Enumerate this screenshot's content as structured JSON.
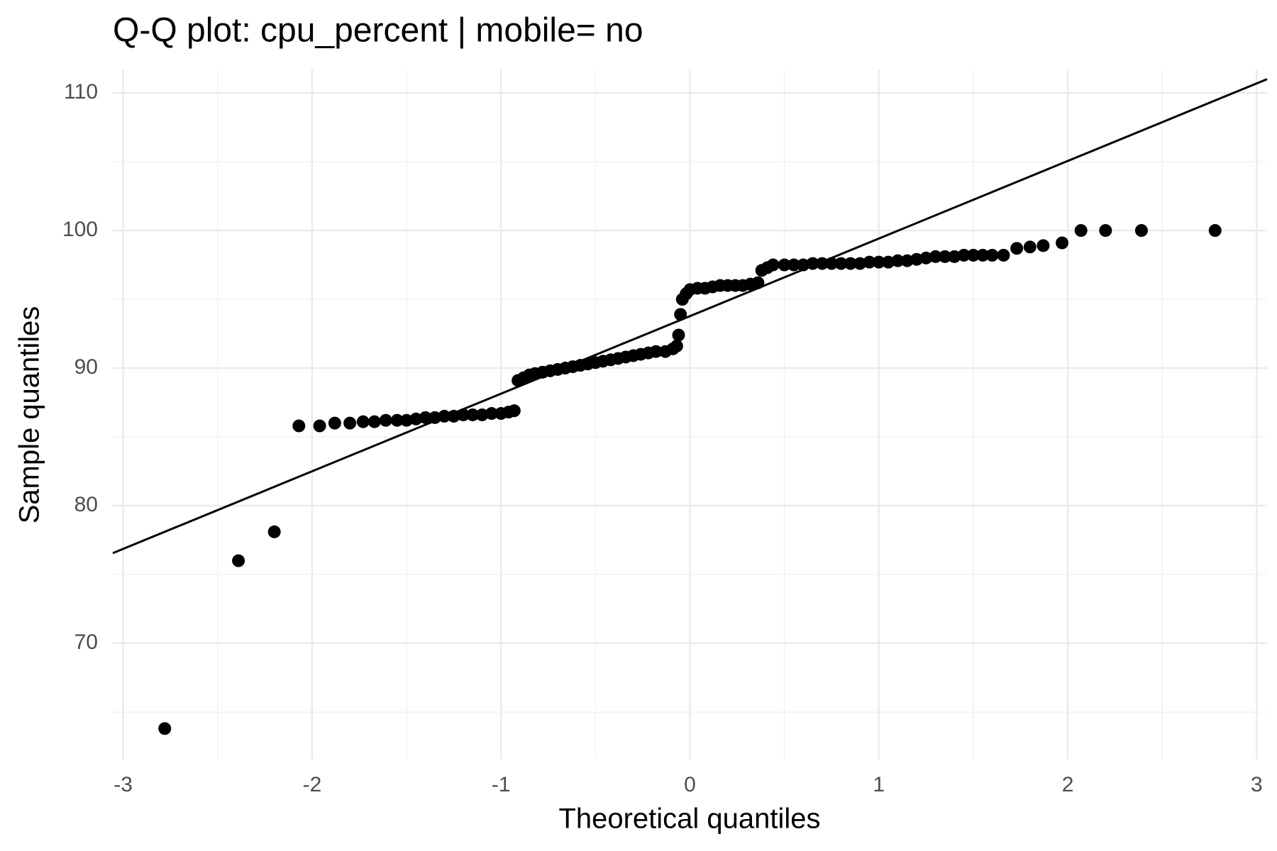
{
  "chart_data": {
    "type": "scatter",
    "title": "Q-Q plot: cpu_percent | mobile= no",
    "x_label": "Theoretical quantiles",
    "y_label": "Sample quantiles",
    "color": "#000000",
    "x": [
      -2.78,
      -2.39,
      -2.2,
      -2.07,
      -1.96,
      -1.88,
      -1.8,
      -1.73,
      -1.67,
      -1.61,
      -1.55,
      -1.5,
      -1.45,
      -1.4,
      -1.35,
      -1.3,
      -1.25,
      -1.2,
      -1.15,
      -1.1,
      -1.05,
      -1.0,
      -0.96,
      -0.93,
      -0.91,
      -0.88,
      -0.85,
      -0.82,
      -0.78,
      -0.74,
      -0.7,
      -0.66,
      -0.62,
      -0.58,
      -0.54,
      -0.5,
      -0.46,
      -0.42,
      -0.38,
      -0.34,
      -0.3,
      -0.26,
      -0.22,
      -0.18,
      -0.13,
      -0.09,
      -0.07,
      -0.06,
      -0.05,
      -0.04,
      -0.02,
      0,
      0.04,
      0.08,
      0.12,
      0.16,
      0.2,
      0.24,
      0.28,
      0.32,
      0.36,
      0.38,
      0.41,
      0.44,
      0.5,
      0.55,
      0.6,
      0.65,
      0.7,
      0.75,
      0.8,
      0.85,
      0.9,
      0.95,
      1.0,
      1.05,
      1.1,
      1.15,
      1.2,
      1.25,
      1.3,
      1.35,
      1.4,
      1.45,
      1.5,
      1.55,
      1.6,
      1.66,
      1.73,
      1.8,
      1.87,
      1.97,
      2.07,
      2.2,
      2.39,
      2.78
    ],
    "y": [
      63.8,
      76,
      78.1,
      85.8,
      85.8,
      86,
      86,
      86.1,
      86.1,
      86.2,
      86.2,
      86.2,
      86.3,
      86.4,
      86.4,
      86.5,
      86.5,
      86.6,
      86.6,
      86.6,
      86.7,
      86.7,
      86.8,
      86.9,
      89.1,
      89.3,
      89.5,
      89.6,
      89.7,
      89.8,
      89.9,
      90,
      90.1,
      90.2,
      90.3,
      90.4,
      90.5,
      90.6,
      90.7,
      90.8,
      90.9,
      91,
      91.1,
      91.2,
      91.2,
      91.4,
      91.6,
      92.4,
      93.9,
      95,
      95.4,
      95.7,
      95.8,
      95.8,
      95.9,
      96,
      96,
      96,
      96,
      96.1,
      96.2,
      97.1,
      97.3,
      97.5,
      97.5,
      97.5,
      97.5,
      97.6,
      97.6,
      97.6,
      97.6,
      97.6,
      97.6,
      97.7,
      97.7,
      97.7,
      97.8,
      97.8,
      97.9,
      98,
      98.1,
      98.1,
      98.1,
      98.2,
      98.2,
      98.2,
      98.2,
      98.2,
      98.7,
      98.8,
      98.9,
      99.1,
      100,
      100,
      100,
      100
    ],
    "reference_line": {
      "x": [
        -3.055,
        3.055
      ],
      "y": [
        76.55,
        111.0
      ]
    },
    "xlim": [
      -3.055,
      3.055
    ],
    "ylim": [
      61.55,
      111.7
    ],
    "xticks": [
      -3,
      -2,
      -1,
      0,
      1,
      2,
      3
    ],
    "yticks": [
      70,
      80,
      90,
      100,
      110
    ],
    "grid": true
  }
}
